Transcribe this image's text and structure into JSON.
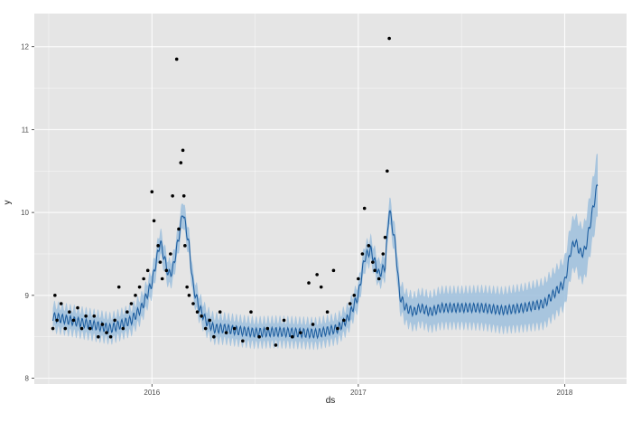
{
  "chart_data": {
    "type": "line",
    "title": "",
    "xlabel": "ds",
    "ylabel": "y",
    "xlim": [
      2015.43,
      2018.3
    ],
    "ylim": [
      7.93,
      12.4
    ],
    "x_ticks": [
      {
        "value": 2016.0,
        "label": "2016"
      },
      {
        "value": 2017.0,
        "label": "2017"
      },
      {
        "value": 2018.0,
        "label": "2018"
      }
    ],
    "y_ticks": [
      {
        "value": 8,
        "label": "8"
      },
      {
        "value": 9,
        "label": "9"
      },
      {
        "value": 10,
        "label": "10"
      },
      {
        "value": 11,
        "label": "11"
      },
      {
        "value": 12,
        "label": "12"
      }
    ],
    "grid": true,
    "colors": {
      "panel_background": "#e5e5e5",
      "grid": "#ffffff",
      "forecast_line": "#1f5fa0",
      "uncertainty_band": "#9dbfdd",
      "observed_points": "#000000"
    },
    "forecast": {
      "x": [
        2015.52,
        2015.6,
        2015.7,
        2015.8,
        2015.9,
        2015.95,
        2016.0,
        2016.04,
        2016.08,
        2016.1,
        2016.13,
        2016.15,
        2016.18,
        2016.2,
        2016.23,
        2016.26,
        2016.3,
        2016.35,
        2016.4,
        2016.5,
        2016.6,
        2016.7,
        2016.8,
        2016.9,
        2016.95,
        2017.0,
        2017.03,
        2017.06,
        2017.1,
        2017.13,
        2017.15,
        2017.18,
        2017.2,
        2017.23,
        2017.27,
        2017.3,
        2017.35,
        2017.4,
        2017.5,
        2017.6,
        2017.7,
        2017.8,
        2017.9,
        2018.0,
        2018.03,
        2018.05,
        2018.08,
        2018.1,
        2018.13,
        2018.16
      ],
      "y": [
        8.74,
        8.7,
        8.65,
        8.6,
        8.7,
        8.85,
        9.15,
        9.65,
        9.25,
        9.3,
        9.7,
        10.02,
        9.6,
        9.1,
        8.85,
        8.7,
        8.6,
        8.6,
        8.58,
        8.55,
        8.56,
        8.55,
        8.54,
        8.6,
        8.72,
        9.0,
        9.45,
        9.55,
        9.25,
        9.35,
        10.05,
        9.6,
        9.0,
        8.85,
        8.8,
        8.85,
        8.8,
        8.85,
        8.85,
        8.85,
        8.82,
        8.85,
        8.9,
        9.15,
        9.55,
        9.65,
        9.5,
        9.55,
        9.95,
        10.35
      ],
      "band_halfwidth": [
        0.15,
        0.15,
        0.15,
        0.15,
        0.15,
        0.15,
        0.15,
        0.15,
        0.15,
        0.15,
        0.15,
        0.15,
        0.15,
        0.15,
        0.15,
        0.15,
        0.15,
        0.15,
        0.15,
        0.15,
        0.15,
        0.15,
        0.15,
        0.15,
        0.15,
        0.15,
        0.15,
        0.15,
        0.15,
        0.15,
        0.16,
        0.17,
        0.18,
        0.19,
        0.2,
        0.2,
        0.21,
        0.22,
        0.22,
        0.23,
        0.24,
        0.25,
        0.27,
        0.29,
        0.31,
        0.32,
        0.33,
        0.34,
        0.36,
        0.38
      ]
    },
    "observed": {
      "x": [
        2015.52,
        2015.53,
        2015.54,
        2015.56,
        2015.58,
        2015.6,
        2015.62,
        2015.64,
        2015.66,
        2015.68,
        2015.7,
        2015.72,
        2015.74,
        2015.76,
        2015.78,
        2015.8,
        2015.82,
        2015.84,
        2015.86,
        2015.88,
        2015.9,
        2015.92,
        2015.94,
        2015.96,
        2015.98,
        2016.0,
        2016.01,
        2016.03,
        2016.04,
        2016.05,
        2016.07,
        2016.09,
        2016.1,
        2016.12,
        2016.13,
        2016.14,
        2016.15,
        2016.155,
        2016.16,
        2016.17,
        2016.18,
        2016.2,
        2016.22,
        2016.24,
        2016.26,
        2016.28,
        2016.3,
        2016.33,
        2016.36,
        2016.4,
        2016.44,
        2016.48,
        2016.52,
        2016.56,
        2016.6,
        2016.64,
        2016.68,
        2016.72,
        2016.76,
        2016.78,
        2016.8,
        2016.82,
        2016.85,
        2016.88,
        2016.9,
        2016.93,
        2016.96,
        2016.98,
        2017.0,
        2017.02,
        2017.03,
        2017.05,
        2017.07,
        2017.08,
        2017.1,
        2017.12,
        2017.13,
        2017.14,
        2017.15
      ],
      "y": [
        8.6,
        9.0,
        8.7,
        8.9,
        8.6,
        8.8,
        8.7,
        8.85,
        8.6,
        8.75,
        8.6,
        8.75,
        8.5,
        8.65,
        8.55,
        8.5,
        8.7,
        9.1,
        8.6,
        8.8,
        8.9,
        9.0,
        9.1,
        9.2,
        9.3,
        10.25,
        9.9,
        9.6,
        9.4,
        9.2,
        9.3,
        9.5,
        10.2,
        11.85,
        9.8,
        10.6,
        10.75,
        10.2,
        9.6,
        9.1,
        9.0,
        8.9,
        8.8,
        8.75,
        8.6,
        8.7,
        8.5,
        8.8,
        8.55,
        8.6,
        8.45,
        8.8,
        8.5,
        8.6,
        8.4,
        8.7,
        8.5,
        8.55,
        9.15,
        8.65,
        9.25,
        9.1,
        8.8,
        9.3,
        8.6,
        8.7,
        8.9,
        9.0,
        9.2,
        9.5,
        10.05,
        9.6,
        9.4,
        9.3,
        9.2,
        9.5,
        9.7,
        10.5,
        12.1
      ]
    }
  }
}
